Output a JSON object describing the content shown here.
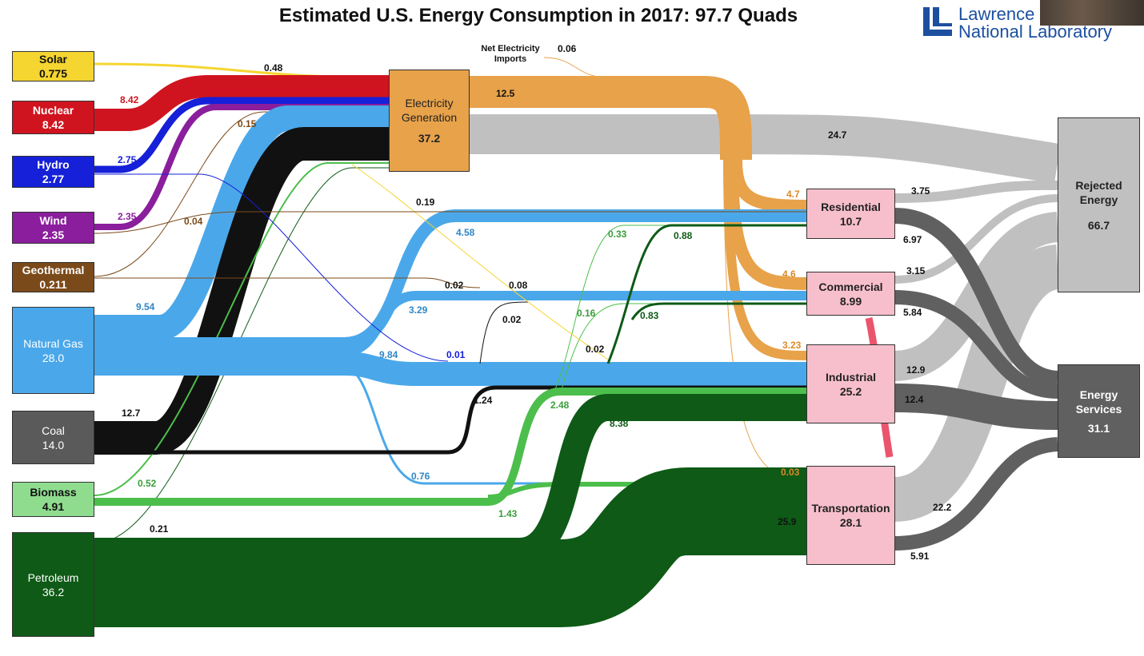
{
  "header": {
    "title": "Estimated U.S. Energy Consumption in 2017: 97.7 Quads"
  },
  "logo": {
    "line1": "Lawrence",
    "line2": "National Laboratory"
  },
  "colors": {
    "solar": "#f5d530",
    "nuclear": "#d0141f",
    "hydro": "#1520d8",
    "wind": "#8a1e9c",
    "geothermal": "#7b4a1a",
    "natural_gas": "#4aa8ea",
    "coal": "#111111",
    "biomass": "#4cbe4c",
    "petroleum": "#0e5a16",
    "electricity": "#e7a24a",
    "sector": "#f7bfcc",
    "rejected": "#c0c0c0",
    "services": "#606060"
  },
  "sources": [
    {
      "key": "solar",
      "name": "Solar",
      "value": "0.775"
    },
    {
      "key": "nuclear",
      "name": "Nuclear",
      "value": "8.42"
    },
    {
      "key": "hydro",
      "name": "Hydro",
      "value": "2.77"
    },
    {
      "key": "wind",
      "name": "Wind",
      "value": "2.35"
    },
    {
      "key": "geothermal",
      "name": "Geothermal",
      "value": "0.211"
    },
    {
      "key": "natural_gas",
      "name": "Natural Gas",
      "value": "28.0"
    },
    {
      "key": "coal",
      "name": "Coal",
      "value": "14.0"
    },
    {
      "key": "biomass",
      "name": "Biomass",
      "value": "4.91"
    },
    {
      "key": "petroleum",
      "name": "Petroleum",
      "value": "36.2"
    }
  ],
  "electricity": {
    "name": "Electricity Generation",
    "value": "37.2"
  },
  "net_imports": {
    "name": "Net Electricity Imports",
    "value": "0.06"
  },
  "sectors": [
    {
      "key": "residential",
      "name": "Residential",
      "value": "10.7"
    },
    {
      "key": "commercial",
      "name": "Commercial",
      "value": "8.99"
    },
    {
      "key": "industrial",
      "name": "Industrial",
      "value": "25.2"
    },
    {
      "key": "transportation",
      "name": "Transportation",
      "value": "28.1"
    }
  ],
  "rejected": {
    "name": "Rejected Energy",
    "value": "66.7"
  },
  "services": {
    "name": "Energy Services",
    "value": "31.1"
  },
  "flow_labels": [
    {
      "text": "0.48",
      "color": "#111111"
    },
    {
      "text": "8.42",
      "color": "#d0141f"
    },
    {
      "text": "0.15",
      "color": "#7b4a1a"
    },
    {
      "text": "2.75",
      "color": "#1520d8"
    },
    {
      "text": "2.35",
      "color": "#8a1e9c"
    },
    {
      "text": "0.04",
      "color": "#7b4a1a"
    },
    {
      "text": "9.54",
      "color": "#2f86c8"
    },
    {
      "text": "12.7",
      "color": "#111111"
    },
    {
      "text": "0.52",
      "color": "#3a9e3a"
    },
    {
      "text": "0.21",
      "color": "#111111"
    },
    {
      "text": "12.5",
      "color": "#111111"
    },
    {
      "text": "24.7",
      "color": "#111111"
    },
    {
      "text": "0.19",
      "color": "#111111"
    },
    {
      "text": "4.58",
      "color": "#2f86c8"
    },
    {
      "text": "0.02",
      "color": "#111111"
    },
    {
      "text": "0.08",
      "color": "#111111"
    },
    {
      "text": "0.02",
      "color": "#111111"
    },
    {
      "text": "3.29",
      "color": "#2f86c8"
    },
    {
      "text": "9.84",
      "color": "#2f86c8"
    },
    {
      "text": "0.01",
      "color": "#1520d8"
    },
    {
      "text": "0.02",
      "color": "#111111"
    },
    {
      "text": "1.24",
      "color": "#111111"
    },
    {
      "text": "0.76",
      "color": "#2f86c8"
    },
    {
      "text": "0.33",
      "color": "#3a9e3a"
    },
    {
      "text": "0.16",
      "color": "#3a9e3a"
    },
    {
      "text": "2.48",
      "color": "#3a9e3a"
    },
    {
      "text": "1.43",
      "color": "#3a9e3a"
    },
    {
      "text": "0.88",
      "color": "#0e5a16"
    },
    {
      "text": "0.83",
      "color": "#0e5a16"
    },
    {
      "text": "8.38",
      "color": "#0e5a16"
    },
    {
      "text": "25.9",
      "color": "#111111"
    },
    {
      "text": "4.7",
      "color": "#d98a2a"
    },
    {
      "text": "4.6",
      "color": "#d98a2a"
    },
    {
      "text": "3.23",
      "color": "#d98a2a"
    },
    {
      "text": "0.03",
      "color": "#d98a2a"
    },
    {
      "text": "3.75",
      "color": "#111111"
    },
    {
      "text": "6.97",
      "color": "#111111"
    },
    {
      "text": "3.15",
      "color": "#111111"
    },
    {
      "text": "5.84",
      "color": "#111111"
    },
    {
      "text": "12.9",
      "color": "#111111"
    },
    {
      "text": "12.4",
      "color": "#111111"
    },
    {
      "text": "22.2",
      "color": "#111111"
    },
    {
      "text": "5.91",
      "color": "#111111"
    }
  ]
}
